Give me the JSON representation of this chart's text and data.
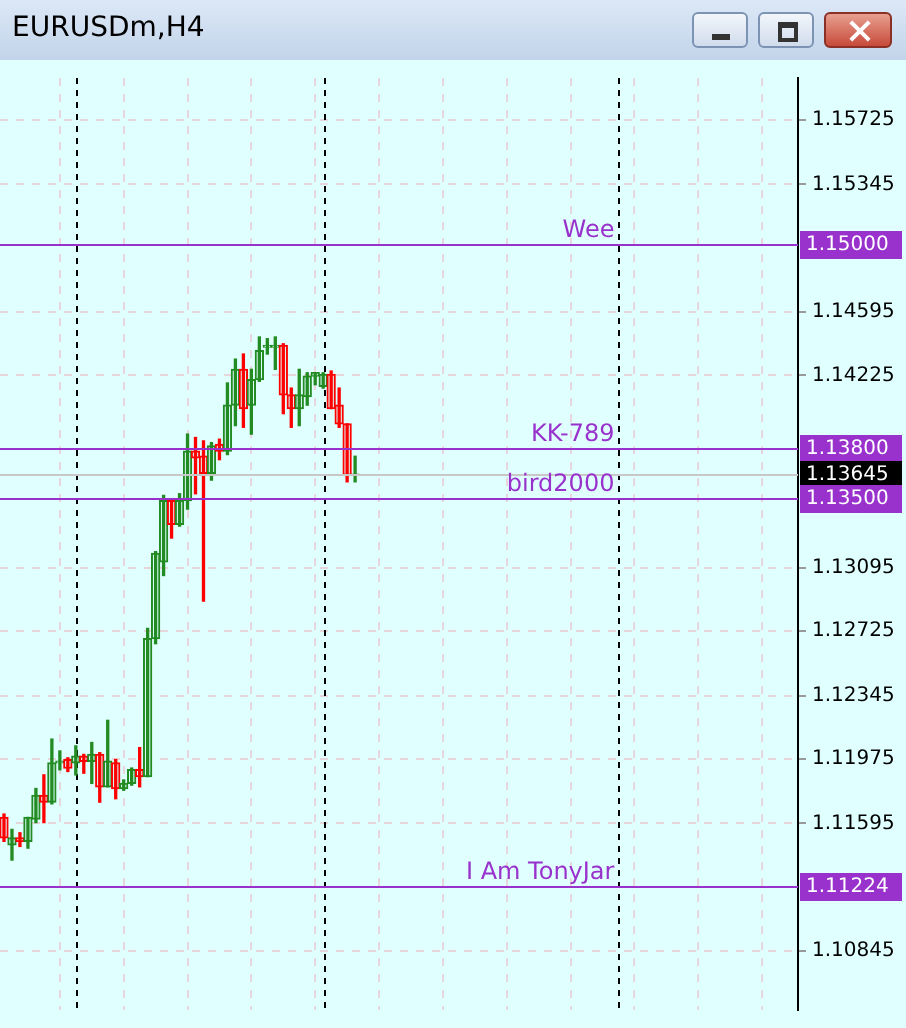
{
  "chart_data": {
    "type": "candlestick",
    "title": "EURUSDm,H4",
    "categories": [
      null,
      null,
      null,
      null,
      null,
      null,
      null,
      null,
      null,
      null,
      null,
      null,
      null,
      null,
      null,
      null,
      null,
      null,
      null,
      null,
      null,
      null,
      null,
      null,
      null,
      null,
      null,
      null,
      null,
      null,
      null,
      null,
      null,
      null,
      null,
      null,
      null,
      null,
      null,
      null,
      null,
      null,
      null,
      null,
      null,
      null,
      null,
      null,
      null,
      null,
      null,
      null,
      null,
      null,
      null,
      null,
      null,
      null,
      null,
      null,
      null,
      null,
      null,
      null,
      null,
      null,
      null,
      null,
      null,
      null,
      null,
      null,
      null,
      null,
      null,
      null,
      null,
      null,
      null,
      null,
      null,
      null,
      null,
      null,
      null,
      null,
      null,
      null,
      null,
      null,
      null,
      null,
      null,
      null,
      null,
      null,
      null,
      null,
      null,
      null
    ],
    "ohlc": [
      [
        1.1163,
        1.1165,
        1.1149,
        1.1151
      ],
      [
        1.1147,
        1.1156,
        1.1138,
        1.1151
      ],
      [
        1.1151,
        1.1154,
        1.1146,
        1.1149
      ],
      [
        1.1149,
        1.1163,
        1.1145,
        1.1163
      ],
      [
        1.1162,
        1.118,
        1.116,
        1.1176
      ],
      [
        1.1176,
        1.1188,
        1.116,
        1.1172
      ],
      [
        1.1172,
        1.1209,
        1.1171,
        1.1195
      ],
      [
        1.1195,
        1.1202,
        1.1191,
        1.1196
      ],
      [
        1.1197,
        1.1198,
        1.119,
        1.1192
      ],
      [
        1.1195,
        1.1205,
        1.1188,
        1.1199
      ],
      [
        1.1199,
        1.12,
        1.1189,
        1.1196
      ],
      [
        1.1196,
        1.1207,
        1.1183,
        1.12
      ],
      [
        1.12,
        1.1201,
        1.1172,
        1.1181
      ],
      [
        1.1181,
        1.122,
        1.1181,
        1.1196
      ],
      [
        1.1195,
        1.1197,
        1.1174,
        1.118
      ],
      [
        1.118,
        1.1185,
        1.1179,
        1.1183
      ],
      [
        1.1183,
        1.1192,
        1.1182,
        1.1191
      ],
      [
        1.1191,
        1.1204,
        1.1181,
        1.1187
      ],
      [
        1.1187,
        1.1274,
        1.1187,
        1.1268
      ],
      [
        1.1268,
        1.1319,
        1.1265,
        1.1318
      ],
      [
        1.1313,
        1.1352,
        1.1305,
        1.1349
      ],
      [
        1.1349,
        1.1349,
        1.1327,
        1.1335
      ],
      [
        1.1335,
        1.1353,
        1.1334,
        1.1349
      ],
      [
        1.1349,
        1.1388,
        1.1344,
        1.1378
      ],
      [
        1.1378,
        1.1386,
        1.1353,
        1.1374
      ],
      [
        1.1375,
        1.1384,
        1.129,
        1.1365
      ],
      [
        1.1365,
        1.1383,
        1.1361,
        1.1381
      ],
      [
        1.1382,
        1.1385,
        1.1373,
        1.1378
      ],
      [
        1.1378,
        1.1418,
        1.1376,
        1.1405
      ],
      [
        1.1405,
        1.1432,
        1.1393,
        1.1426
      ],
      [
        1.1426,
        1.1435,
        1.1392,
        1.1403
      ],
      [
        1.1405,
        1.1426,
        1.1388,
        1.142
      ],
      [
        1.142,
        1.1445,
        1.1419,
        1.1437
      ],
      [
        1.1439,
        1.1444,
        1.1435,
        1.144
      ],
      [
        1.1439,
        1.1445,
        1.1426,
        1.144
      ],
      [
        1.144,
        1.1441,
        1.14,
        1.1411
      ],
      [
        1.1411,
        1.1415,
        1.1392,
        1.1403
      ],
      [
        1.1403,
        1.1426,
        1.1393,
        1.1411
      ],
      [
        1.141,
        1.1424,
        1.1405,
        1.1422
      ],
      [
        1.1422,
        1.1424,
        1.1417,
        1.1424
      ],
      [
        1.1416,
        1.1424,
        1.1415,
        1.1423
      ],
      [
        1.1423,
        1.1425,
        1.1403,
        1.1403
      ],
      [
        1.1405,
        1.1415,
        1.1392,
        1.1394
      ],
      [
        1.1394,
        1.1394,
        1.136,
        1.1364
      ],
      [
        1.1364,
        1.1375,
        1.136,
        1.13645
      ],
      null,
      null,
      null,
      null,
      null,
      null,
      null,
      null,
      null,
      null,
      null,
      null,
      null,
      null,
      null,
      null,
      null,
      null,
      null,
      null,
      null,
      null,
      null,
      null,
      null,
      null,
      null,
      null,
      null,
      null,
      null,
      null,
      null,
      null,
      null,
      null,
      null,
      null,
      null,
      null,
      null,
      null,
      null,
      null,
      null,
      null,
      null,
      null,
      null,
      null,
      null,
      null,
      null,
      null,
      null
    ],
    "colors": [
      "#ff0000",
      "#228b22",
      "#ff0000",
      "#228b22",
      "#228b22",
      "#ff0000",
      "#228b22",
      "#228b22",
      "#ff0000",
      "#228b22",
      "#ff0000",
      "#228b22",
      "#ff0000",
      "#228b22",
      "#ff0000",
      "#228b22",
      "#228b22",
      "#ff0000",
      "#228b22",
      "#228b22",
      "#228b22",
      "#ff0000",
      "#228b22",
      "#228b22",
      "#ff0000",
      "#ff0000",
      "#228b22",
      "#ff0000",
      "#228b22",
      "#228b22",
      "#ff0000",
      "#228b22",
      "#228b22",
      "#228b22",
      "#228b22",
      "#ff0000",
      "#ff0000",
      "#228b22",
      "#228b22",
      "#228b22",
      "#228b22",
      "#ff0000",
      "#ff0000",
      "#ff0000",
      "#228b22",
      null,
      null,
      null,
      null,
      null,
      null,
      null,
      null,
      null,
      null,
      null,
      null,
      null,
      null,
      null,
      null,
      null,
      null,
      null,
      null,
      null,
      null,
      null,
      null,
      null,
      null,
      null,
      null,
      null,
      null,
      null,
      null,
      null,
      null,
      null,
      null,
      null,
      null,
      null,
      null,
      null,
      null,
      null,
      null,
      null,
      null,
      null,
      null,
      null,
      null,
      null,
      null,
      null,
      null,
      null
    ],
    "annotations": [
      "1.15000",
      "1.13800",
      "1.13645",
      "1.13500",
      "1.11224"
    ],
    "ylim": [
      1.105,
      1.1597
    ],
    "yticks": [
      1.15725,
      1.15345,
      1.14595,
      1.14225,
      1.13095,
      1.12725,
      1.12345,
      1.11975,
      1.11595,
      1.10845
    ],
    "ref_lines": [
      {
        "axis": "y",
        "value": 1.15,
        "label": "Wee",
        "color": "#9932cc"
      },
      {
        "axis": "y",
        "value": 1.138,
        "label": "KK-789",
        "color": "#9932cc"
      },
      {
        "axis": "y",
        "value": 1.13645,
        "label": null,
        "color": "#c8c8c8"
      },
      {
        "axis": "y",
        "value": 1.135,
        "label": "bird2000",
        "color": "#9932cc"
      },
      {
        "axis": "y",
        "value": 1.11224,
        "label": "I Am TonyJar",
        "color": "#9932cc"
      }
    ],
    "grid": true,
    "legend": false,
    "tick_labels": "y"
  }
}
